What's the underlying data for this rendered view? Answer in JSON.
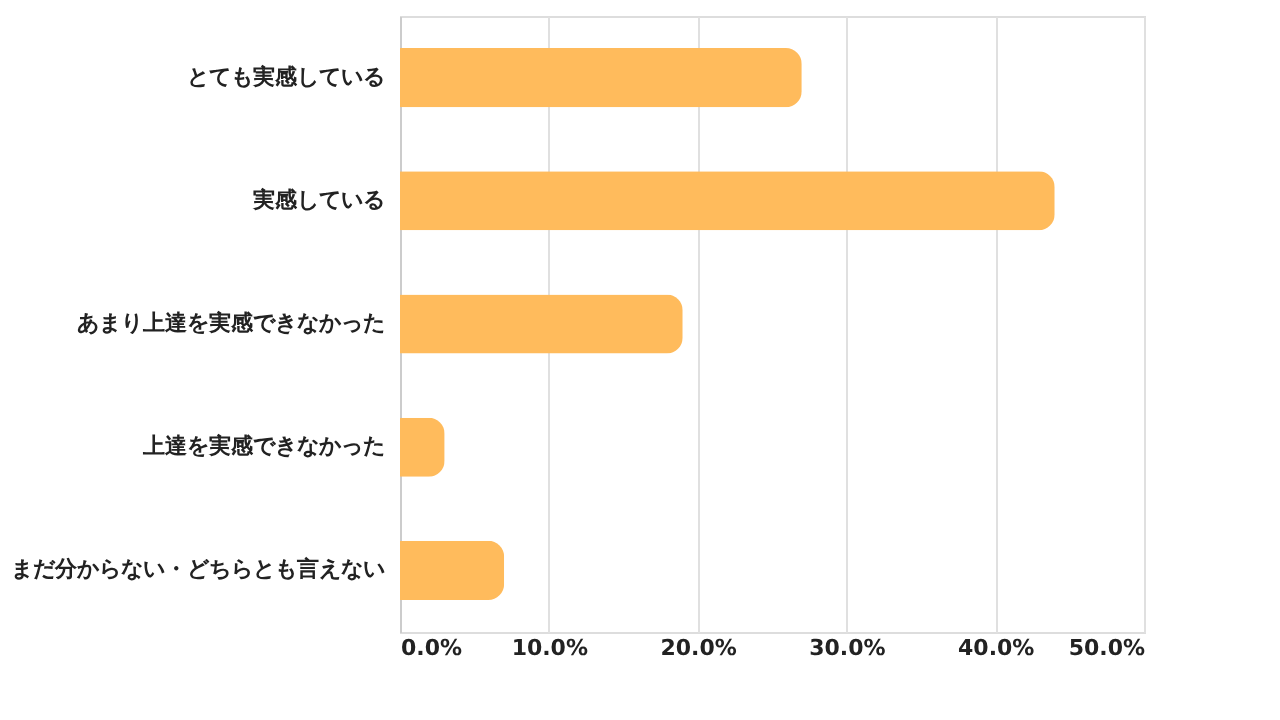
{
  "chart_data": {
    "type": "bar",
    "orientation": "horizontal",
    "categories": [
      "とても実感している",
      "実感している",
      "あまり上達を実感できなかった",
      "上達を実感できなかった",
      "まだ分からない・どちらとも言えない"
    ],
    "values": [
      27,
      44,
      19,
      3,
      7
    ],
    "color": "#ffbb5c",
    "xlim": [
      0,
      50
    ],
    "xticks": [
      {
        "value": 0,
        "label": "0.0%"
      },
      {
        "value": 10,
        "label": "10.0%"
      },
      {
        "value": 20,
        "label": "20.0%"
      },
      {
        "value": 30,
        "label": "30.0%"
      },
      {
        "value": 40,
        "label": "40.0%"
      },
      {
        "value": 50,
        "label": "50.0%"
      }
    ],
    "grid": "x"
  }
}
